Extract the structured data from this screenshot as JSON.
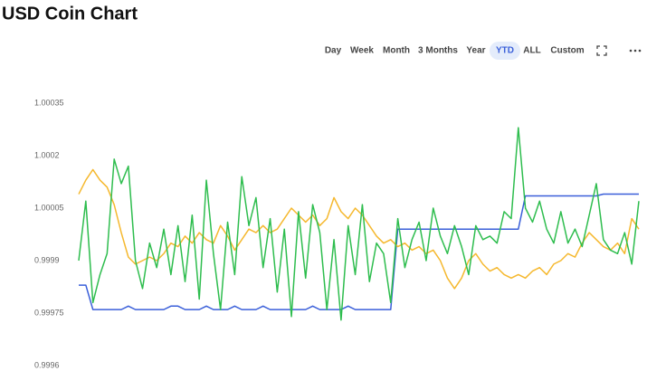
{
  "chart_data": {
    "type": "line",
    "title": "USD Coin Chart",
    "buttons": [
      "Day",
      "Week",
      "Month",
      "3 Months",
      "Year",
      "YTD",
      "ALL",
      "Custom"
    ],
    "active_button": 5,
    "ylim": [
      0.9996,
      1.00035
    ],
    "yticks": [
      0.9996,
      0.99975,
      0.9999,
      1.00005,
      1.0002,
      1.00035
    ],
    "grid": false,
    "series": [
      {
        "color": "#3a5fd9",
        "values": [
          0.99983,
          0.99983,
          0.99976,
          0.99976,
          0.99976,
          0.99976,
          0.99976,
          0.99977,
          0.99976,
          0.99976,
          0.99976,
          0.99976,
          0.99976,
          0.99977,
          0.99977,
          0.99976,
          0.99976,
          0.99976,
          0.99977,
          0.99976,
          0.99976,
          0.99976,
          0.99977,
          0.99976,
          0.99976,
          0.99976,
          0.99977,
          0.99976,
          0.99976,
          0.99976,
          0.99976,
          0.99976,
          0.99976,
          0.99977,
          0.99976,
          0.99976,
          0.99976,
          0.99976,
          0.99977,
          0.99976,
          0.99976,
          0.99976,
          0.99976,
          0.99976,
          0.99976,
          0.99999,
          0.99999,
          0.99999,
          0.99999,
          0.99999,
          0.99999,
          0.99999,
          0.99999,
          0.99999,
          0.99999,
          0.99999,
          0.99999,
          0.99999,
          0.99999,
          0.99999,
          0.99999,
          0.99999,
          0.99999,
          1.000085,
          1.000085,
          1.000085,
          1.000085,
          1.000085,
          1.000085,
          1.000085,
          1.000085,
          1.000085,
          1.000085,
          1.000085,
          1.00009,
          1.00009,
          1.00009,
          1.00009,
          1.00009,
          1.00009
        ]
      },
      {
        "color": "#f5b82e",
        "values": [
          1.00009,
          1.00013,
          1.00016,
          1.00013,
          1.00011,
          1.00006,
          0.99998,
          0.99991,
          0.99989,
          0.9999,
          0.99991,
          0.9999,
          0.99992,
          0.99995,
          0.99994,
          0.99997,
          0.99995,
          0.99998,
          0.99996,
          0.99995,
          1,
          0.99997,
          0.99993,
          0.99996,
          0.99999,
          0.99998,
          1,
          0.99998,
          0.99999,
          1.00002,
          1.00005,
          1.00003,
          1.00001,
          1.00003,
          1,
          1.00002,
          1.00008,
          1.00004,
          1.00002,
          1.00005,
          1.00003,
          1,
          0.99997,
          0.99995,
          0.99996,
          0.99994,
          0.99995,
          0.99993,
          0.99994,
          0.99992,
          0.99993,
          0.9999,
          0.99985,
          0.99982,
          0.99985,
          0.9999,
          0.99992,
          0.99989,
          0.99987,
          0.99988,
          0.99986,
          0.99985,
          0.99986,
          0.99985,
          0.99987,
          0.99988,
          0.99986,
          0.99989,
          0.9999,
          0.99992,
          0.99991,
          0.99995,
          0.99998,
          0.99996,
          0.99994,
          0.99993,
          0.99995,
          0.99992,
          1.00002,
          0.99999
        ]
      },
      {
        "color": "#2ebd4e",
        "values": [
          0.9999,
          1.00007,
          0.99978,
          0.99986,
          0.99992,
          1.00019,
          1.00012,
          1.00017,
          0.9999,
          0.99982,
          0.99995,
          0.99988,
          0.99999,
          0.99986,
          1,
          0.99984,
          1.00003,
          0.99979,
          1.00013,
          0.99992,
          0.99976,
          1.00001,
          0.99986,
          1.00014,
          1,
          1.00008,
          0.99988,
          1.00002,
          0.99981,
          0.99999,
          0.99974,
          1.00004,
          0.99985,
          1.00006,
          0.99998,
          0.99976,
          0.99996,
          0.99973,
          1,
          0.99986,
          1.00006,
          0.99984,
          0.99995,
          0.99992,
          0.99978,
          1.00002,
          0.99988,
          0.99996,
          1.00001,
          0.9999,
          1.00005,
          0.99997,
          0.99992,
          1,
          0.99994,
          0.99986,
          1,
          0.99996,
          0.99997,
          0.99995,
          1.00004,
          1.00002,
          1.00028,
          1.00005,
          1.00001,
          1.00007,
          0.99999,
          0.99995,
          1.00004,
          0.99995,
          0.99999,
          0.99994,
          1.00003,
          1.00012,
          0.99996,
          0.99993,
          0.99992,
          0.99998,
          0.99989,
          1.00007
        ]
      }
    ]
  }
}
